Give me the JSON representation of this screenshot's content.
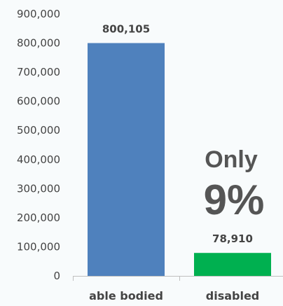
{
  "chart_data": {
    "type": "bar",
    "categories": [
      "able bodied",
      "disabled"
    ],
    "values": [
      800105,
      78910
    ],
    "data_labels": [
      "800,105",
      "78,910"
    ],
    "ylim": [
      0,
      900000
    ],
    "yticks": [
      0,
      100000,
      200000,
      300000,
      400000,
      500000,
      600000,
      700000,
      800000,
      900000
    ],
    "ytick_labels": [
      "0",
      "100,000",
      "200,000",
      "300,000",
      "400,000",
      "500,000",
      "600,000",
      "700,000",
      "800,000",
      "900,000"
    ],
    "colors": [
      "#4f81bd",
      "#00b050"
    ],
    "annotation": {
      "line1": "Only",
      "line2": "9%"
    },
    "grid": false,
    "legend": "none"
  }
}
